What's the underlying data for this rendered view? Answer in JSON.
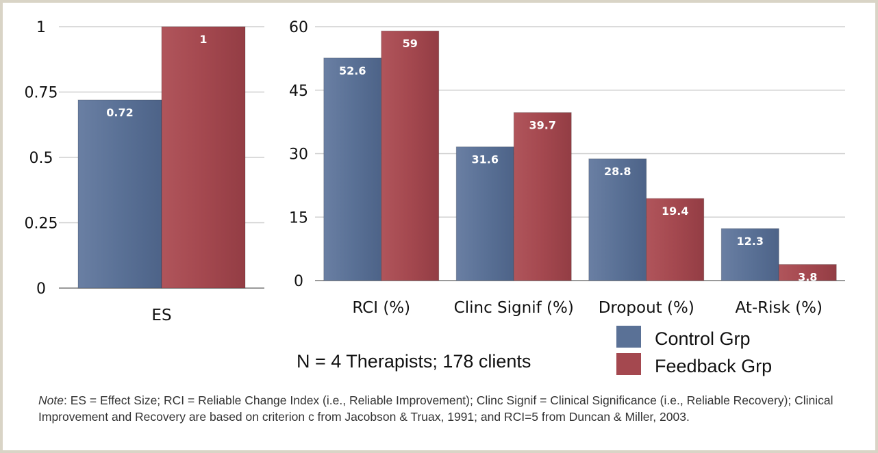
{
  "chart_data": [
    {
      "type": "bar",
      "categories": [
        "ES"
      ],
      "series": [
        {
          "name": "Control Grp",
          "values": [
            0.72
          ]
        },
        {
          "name": "Feedback Grp",
          "values": [
            1
          ]
        }
      ],
      "data_labels": [
        [
          "0.72"
        ],
        [
          "1"
        ]
      ],
      "yticks": [
        "0",
        "0.25",
        "0.5",
        "0.75",
        "1"
      ],
      "ylim": [
        0,
        1
      ],
      "grid": true
    },
    {
      "type": "bar",
      "categories": [
        "RCI (%)",
        "Clinc Signif (%)",
        "Dropout (%)",
        "At-Risk (%)"
      ],
      "series": [
        {
          "name": "Control Grp",
          "values": [
            52.6,
            31.6,
            28.8,
            12.3
          ]
        },
        {
          "name": "Feedback Grp",
          "values": [
            59,
            39.7,
            19.4,
            3.8
          ]
        }
      ],
      "data_labels": [
        [
          "52.6",
          "31.6",
          "28.8",
          "12.3"
        ],
        [
          "59",
          "39.7",
          "19.4",
          "3.8"
        ]
      ],
      "yticks": [
        "0",
        "15",
        "30",
        "45",
        "60"
      ],
      "ylim": [
        0,
        60
      ],
      "grid": true
    }
  ],
  "legend": {
    "placement": "bottom-right",
    "items": [
      {
        "label": "Control Grp",
        "color": "#5a7196"
      },
      {
        "label": "Feedback Grp",
        "color": "#a4484f"
      }
    ]
  },
  "sample_text": "N = 4 Therapists; 178 clients",
  "note": {
    "prefix": "Note",
    "text": ": ES = Effect Size; RCI = Reliable Change Index (i.e., Reliable Improvement); Clinc Signif = Clinical Significance (i.e., Reliable Recovery); Clinical Improvement and Recovery are based on criterion c from Jacobson & Truax, 1991; and RCI=5 from Duncan & Miller, 2003."
  },
  "colors": {
    "control": "#5a7196",
    "feedback": "#a4484f",
    "grid": "#cfcfcf"
  }
}
